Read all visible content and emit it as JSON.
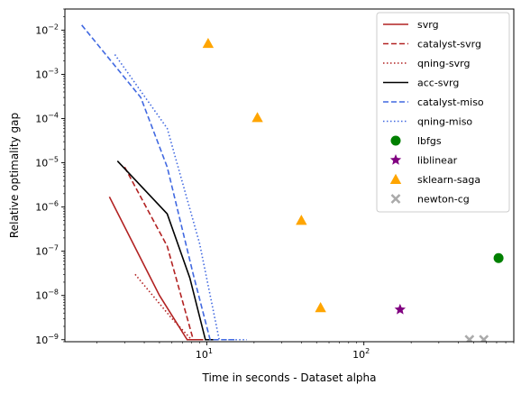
{
  "chart_data": {
    "type": "line",
    "title": "",
    "xlabel": "Time in seconds - Dataset alpha",
    "ylabel": "Relative optimality gap",
    "xscale": "log",
    "yscale": "log",
    "xlim": [
      1.25,
      900
    ],
    "ylim": [
      9e-10,
      0.03
    ],
    "x_ticks": [
      {
        "value": 10,
        "base": "10",
        "exp": "1"
      },
      {
        "value": 100,
        "base": "10",
        "exp": "2"
      }
    ],
    "y_ticks": [
      {
        "value": 1e-09,
        "base": "10",
        "exp": "−9"
      },
      {
        "value": 1e-08,
        "base": "10",
        "exp": "−8"
      },
      {
        "value": 1e-07,
        "base": "10",
        "exp": "−7"
      },
      {
        "value": 1e-06,
        "base": "10",
        "exp": "−6"
      },
      {
        "value": 1e-05,
        "base": "10",
        "exp": "−5"
      },
      {
        "value": 0.0001,
        "base": "10",
        "exp": "−4"
      },
      {
        "value": 0.001,
        "base": "10",
        "exp": "−3"
      },
      {
        "value": 0.01,
        "base": "10",
        "exp": "−2"
      }
    ],
    "legend_position": "top-right",
    "grid": false,
    "series": [
      {
        "name": "svrg",
        "kind": "line",
        "color": "#b22222",
        "dash": "solid",
        "points": [
          [
            2.4,
            1.7e-06
          ],
          [
            5.0,
            1e-08
          ],
          [
            7.5,
            1e-09
          ],
          [
            9.5,
            1e-09
          ]
        ]
      },
      {
        "name": "catalyst-svrg",
        "kind": "line",
        "color": "#b22222",
        "dash": "dashed",
        "points": [
          [
            3.0,
            8e-06
          ],
          [
            5.6,
            1.3e-07
          ],
          [
            8.2,
            1e-09
          ],
          [
            9.0,
            1e-09
          ]
        ]
      },
      {
        "name": "qning-svrg",
        "kind": "line",
        "color": "#b22222",
        "dash": "dotted",
        "points": [
          [
            3.5,
            3e-08
          ],
          [
            6.0,
            3e-09
          ],
          [
            8.0,
            1e-09
          ]
        ]
      },
      {
        "name": "acc-svrg",
        "kind": "line",
        "color": "#000000",
        "dash": "solid",
        "points": [
          [
            2.7,
            1.1e-05
          ],
          [
            5.6,
            7e-07
          ],
          [
            7.8,
            2.5e-08
          ],
          [
            9.8,
            1e-09
          ],
          [
            11.0,
            1e-09
          ]
        ]
      },
      {
        "name": "catalyst-miso",
        "kind": "line",
        "color": "#4169e1",
        "dash": "dashed",
        "points": [
          [
            1.6,
            0.013
          ],
          [
            3.8,
            0.0003
          ],
          [
            5.6,
            8e-06
          ],
          [
            8.2,
            3e-08
          ],
          [
            10.5,
            1e-09
          ],
          [
            15.0,
            1e-09
          ]
        ]
      },
      {
        "name": "qning-miso",
        "kind": "line",
        "color": "#4169e1",
        "dash": "dotted",
        "points": [
          [
            2.6,
            0.0028
          ],
          [
            5.6,
            6e-05
          ],
          [
            9.0,
            1.5e-07
          ],
          [
            12.0,
            1e-09
          ],
          [
            18.0,
            1e-09
          ]
        ]
      },
      {
        "name": "lbfgs",
        "kind": "scatter",
        "marker": "circle",
        "color": "#008000",
        "points": [
          [
            720,
            7e-08
          ]
        ]
      },
      {
        "name": "liblinear",
        "kind": "scatter",
        "marker": "star",
        "color": "#800080",
        "points": [
          [
            170,
            4.8e-09
          ]
        ]
      },
      {
        "name": "sklearn-saga",
        "kind": "scatter",
        "marker": "triangle",
        "color": "#ffa500",
        "points": [
          [
            10.2,
            0.005
          ],
          [
            21.0,
            0.000105
          ],
          [
            40.0,
            5e-07
          ],
          [
            53.0,
            5.3e-09
          ]
        ]
      },
      {
        "name": "newton-cg",
        "kind": "scatter",
        "marker": "x",
        "color": "#aaaaaa",
        "points": [
          [
            470,
            1e-09
          ],
          [
            580,
            1e-09
          ]
        ]
      }
    ]
  }
}
